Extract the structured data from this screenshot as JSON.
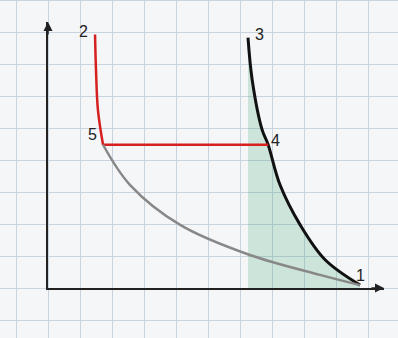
{
  "chart_data": {
    "type": "line",
    "tick_labels": false,
    "grid": false,
    "xlim": [
      0,
      10.5
    ],
    "ylim": [
      0,
      8.3
    ],
    "series": [
      {
        "color": "#111111",
        "x": [
          6.25,
          6.38,
          6.69,
          6.88,
          7.25,
          7.88,
          8.66,
          9.75
        ],
        "values": [
          7.81,
          6.5,
          4.94,
          4.47,
          3.22,
          1.97,
          0.88,
          0.09
        ]
      },
      {
        "color": "#d62020",
        "x": [
          1.47,
          1.5,
          1.56,
          1.72
        ],
        "values": [
          7.91,
          6.81,
          5.56,
          4.47
        ]
      },
      {
        "color": "#d62020",
        "x": [
          1.72,
          6.88
        ],
        "values": [
          4.47,
          4.47
        ]
      },
      {
        "color": "#888888",
        "x": [
          1.72,
          2.56,
          4.13,
          6.31,
          8.5,
          9.75
        ],
        "values": [
          4.47,
          3.22,
          1.97,
          1.03,
          0.41,
          0.09
        ]
      }
    ],
    "annotations": [
      {
        "text": "1",
        "x": 9.75,
        "y": 0.4
      },
      {
        "text": "2",
        "x": 1.1,
        "y": 8.0
      },
      {
        "text": "3",
        "x": 6.6,
        "y": 7.9
      },
      {
        "text": "4",
        "x": 7.1,
        "y": 4.6
      },
      {
        "text": "5",
        "x": 1.4,
        "y": 4.8
      }
    ]
  }
}
